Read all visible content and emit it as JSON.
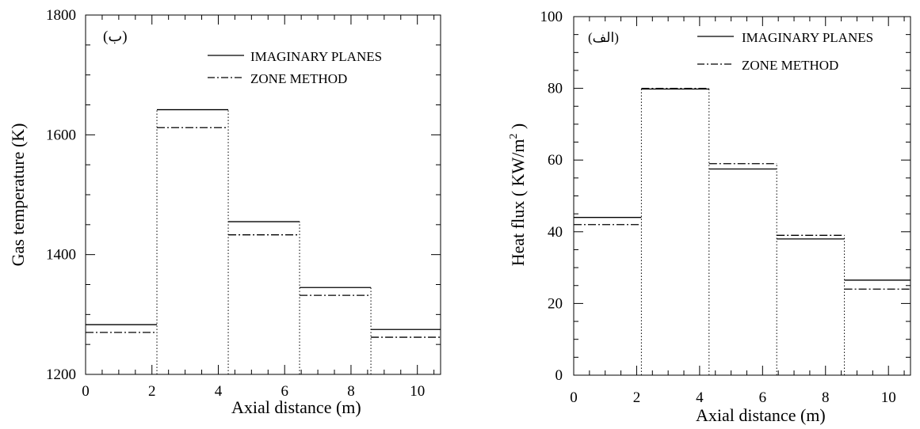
{
  "chart_data": [
    {
      "type": "line",
      "panel_label": "(ب)",
      "xlabel": "Axial distance (m)",
      "ylabel": "Gas temperature (K)",
      "xlim": [
        0,
        10.7
      ],
      "ylim": [
        1200,
        1800
      ],
      "x_ticks": [
        "0",
        "2",
        "4",
        "6",
        "8",
        "10"
      ],
      "y_ticks": [
        "1200",
        "1400",
        "1600",
        "1800"
      ],
      "zone_edges": [
        0,
        2.15,
        4.3,
        6.45,
        8.6,
        10.7
      ],
      "legend_position": "top-right",
      "series": [
        {
          "name": "IMAGINARY PLANES",
          "values": [
            1283,
            1642,
            1455,
            1345,
            1275
          ]
        },
        {
          "name": "ZONE METHOD",
          "values": [
            1270,
            1612,
            1433,
            1332,
            1262
          ]
        }
      ]
    },
    {
      "type": "line",
      "panel_label": "(الف)",
      "xlabel": "Axial distance (m)",
      "ylabel": "Heat flux ( KW/m",
      "ylabel_sup": "2",
      "ylabel_end": " )",
      "xlim": [
        0,
        10.7
      ],
      "ylim": [
        0,
        100
      ],
      "x_ticks": [
        "0",
        "2",
        "4",
        "6",
        "8",
        "10"
      ],
      "y_ticks": [
        "0",
        "20",
        "40",
        "60",
        "80",
        "100"
      ],
      "zone_edges": [
        0,
        2.15,
        4.3,
        6.45,
        8.6,
        10.7
      ],
      "legend_position": "top-right",
      "series": [
        {
          "name": "IMAGINARY PLANES",
          "values": [
            44,
            79.8,
            57.5,
            38,
            26.5
          ]
        },
        {
          "name": "ZONE METHOD",
          "values": [
            42,
            80,
            59,
            39,
            24
          ]
        }
      ]
    }
  ]
}
